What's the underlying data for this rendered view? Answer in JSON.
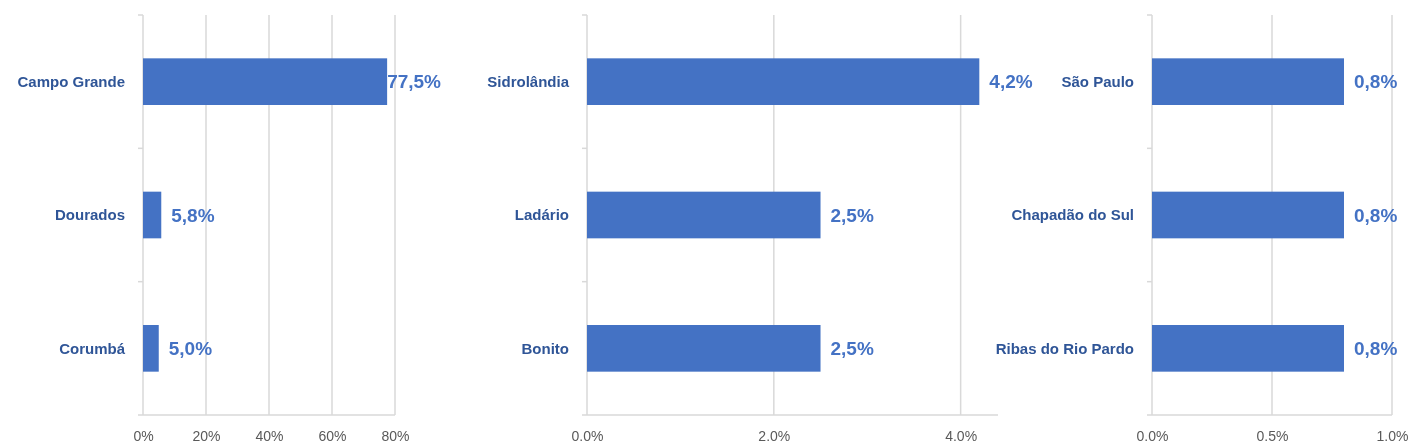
{
  "chart_data": [
    {
      "type": "bar",
      "orientation": "horizontal",
      "categories": [
        "Campo Grande",
        "Dourados",
        "Corumbá"
      ],
      "values": [
        77.5,
        5.8,
        5.0
      ],
      "value_labels": [
        "77,5%",
        "5,8%",
        "5,0%"
      ],
      "color": "#4472c4",
      "xlim": [
        0,
        80
      ],
      "xticks": [
        {
          "value": 0,
          "label": "0%"
        },
        {
          "value": 20,
          "label": "20%"
        },
        {
          "value": 40,
          "label": "40%"
        },
        {
          "value": 60,
          "label": "60%"
        },
        {
          "value": 80,
          "label": "80%"
        }
      ],
      "grid": "x"
    },
    {
      "type": "bar",
      "orientation": "horizontal",
      "categories": [
        "Sidrolândia",
        "Ladário",
        "Bonito"
      ],
      "values": [
        4.2,
        2.5,
        2.5
      ],
      "value_labels": [
        "4,2%",
        "2,5%",
        "2,5%"
      ],
      "color": "#4472c4",
      "xlim": [
        0,
        4.4
      ],
      "xticks": [
        {
          "value": 0,
          "label": "0.0%"
        },
        {
          "value": 2,
          "label": "2.0%"
        },
        {
          "value": 4,
          "label": "4.0%"
        }
      ],
      "grid": "x"
    },
    {
      "type": "bar",
      "orientation": "horizontal",
      "categories": [
        "São Paulo",
        "Chapadão do Sul",
        "Ribas do Rio Pardo"
      ],
      "values": [
        0.8,
        0.8,
        0.8
      ],
      "value_labels": [
        "0,8%",
        "0,8%",
        "0,8%"
      ],
      "color": "#4472c4",
      "xlim": [
        0,
        1
      ],
      "xticks": [
        {
          "value": 0,
          "label": "0.0%"
        },
        {
          "value": 0.5,
          "label": "0.5%"
        },
        {
          "value": 1,
          "label": "1.0%"
        }
      ],
      "grid": "x"
    }
  ]
}
